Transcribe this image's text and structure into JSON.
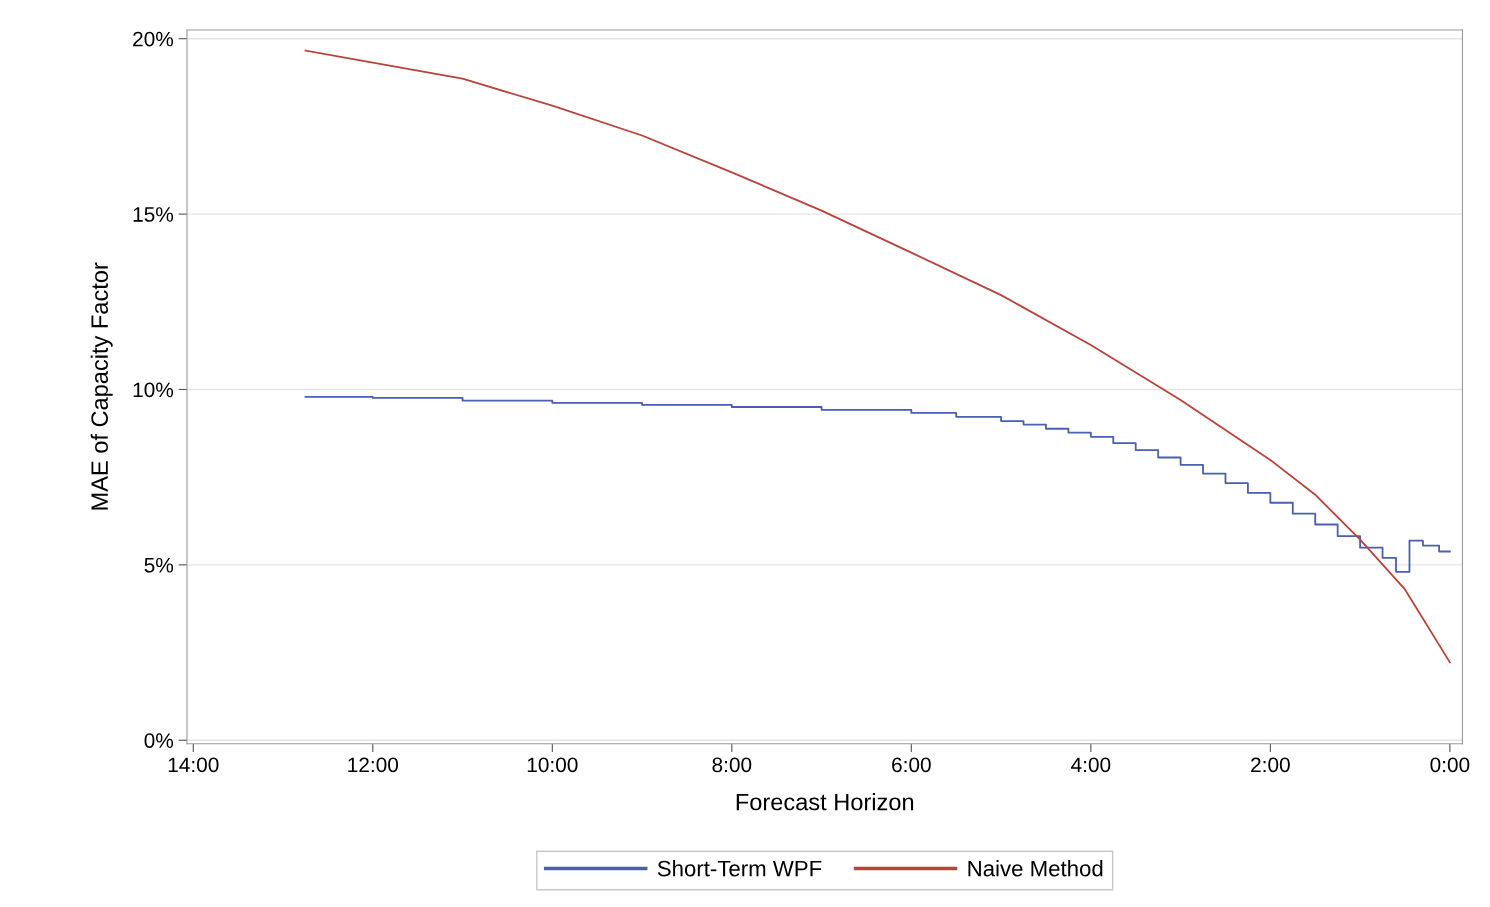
{
  "chart_data": {
    "type": "line",
    "xlabel": "Forecast Horizon",
    "ylabel": "MAE of Capacity Factor",
    "xlim": [
      14.07,
      -0.14
    ],
    "ylim": [
      -0.1,
      20.25
    ],
    "xticks": [
      {
        "value": 14,
        "label": "14:00"
      },
      {
        "value": 12,
        "label": "12:00"
      },
      {
        "value": 10,
        "label": "10:00"
      },
      {
        "value": 8,
        "label": "8:00"
      },
      {
        "value": 6,
        "label": "6:00"
      },
      {
        "value": 4,
        "label": "4:00"
      },
      {
        "value": 2,
        "label": "2:00"
      },
      {
        "value": 0,
        "label": "0:00"
      }
    ],
    "yticks": [
      {
        "value": 0,
        "label": "0%"
      },
      {
        "value": 5,
        "label": "5%"
      },
      {
        "value": 10,
        "label": "10%"
      },
      {
        "value": 15,
        "label": "15%"
      },
      {
        "value": 20,
        "label": "20%"
      }
    ],
    "grid": "y",
    "legend": "bottom",
    "series": [
      {
        "name": "Short-Term WPF",
        "type": "step",
        "color": "#4a5fb0",
        "x": [
          12.75,
          12,
          11,
          10,
          9,
          8,
          7,
          6,
          5.5,
          5,
          4.75,
          4.5,
          4.25,
          4,
          3.75,
          3.5,
          3.25,
          3,
          2.75,
          2.5,
          2.25,
          2,
          1.75,
          1.5,
          1.25,
          1,
          0.75,
          0.6,
          0.45,
          0.3,
          0.12,
          0
        ],
        "values": [
          9.79,
          9.76,
          9.68,
          9.62,
          9.56,
          9.5,
          9.42,
          9.33,
          9.22,
          9.1,
          9.0,
          8.88,
          8.77,
          8.65,
          8.47,
          8.27,
          8.06,
          7.85,
          7.6,
          7.33,
          7.05,
          6.77,
          6.46,
          6.15,
          5.82,
          5.49,
          5.2,
          4.8,
          5.69,
          5.55,
          5.38,
          5.38
        ]
      },
      {
        "name": "Naive Method",
        "color": "#b8433a",
        "x": [
          12.75,
          12,
          11,
          10,
          9,
          8,
          7,
          6,
          5,
          4,
          3,
          2,
          1.5,
          1,
          0.5,
          0
        ],
        "values": [
          19.66,
          19.32,
          18.86,
          18.09,
          17.24,
          16.19,
          15.1,
          13.9,
          12.69,
          11.27,
          9.7,
          7.99,
          7.0,
          5.72,
          4.3,
          2.22
        ]
      }
    ]
  }
}
